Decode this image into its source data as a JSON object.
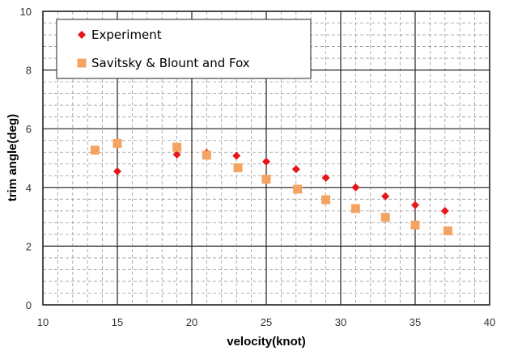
{
  "chart_data": {
    "type": "scatter",
    "xlabel": "velocity(knot)",
    "ylabel": "trim angle(deg)",
    "xlim": [
      10,
      40
    ],
    "ylim": [
      0,
      10
    ],
    "x_ticks": [
      10,
      15,
      20,
      25,
      30,
      35,
      40
    ],
    "y_ticks": [
      0,
      2,
      4,
      6,
      8,
      10
    ],
    "grid": true,
    "legend_position": "top-left",
    "series": [
      {
        "name": "Experiment",
        "marker": "diamond",
        "color": "#e8151b",
        "x": [
          15,
          19,
          21,
          23,
          25,
          27,
          29,
          31,
          33,
          35,
          37
        ],
        "y": [
          4.55,
          5.12,
          5.18,
          5.08,
          4.88,
          4.62,
          4.33,
          4.0,
          3.7,
          3.4,
          3.2
        ]
      },
      {
        "name": "Savitsky & Blount and Fox",
        "marker": "square",
        "color": "#f4a460",
        "x": [
          13.5,
          15,
          19,
          21,
          23.1,
          25,
          27.1,
          29,
          31,
          33,
          35,
          37.2
        ],
        "y": [
          5.27,
          5.5,
          5.37,
          5.1,
          4.67,
          4.28,
          3.94,
          3.58,
          3.28,
          2.98,
          2.72,
          2.52
        ]
      }
    ]
  }
}
